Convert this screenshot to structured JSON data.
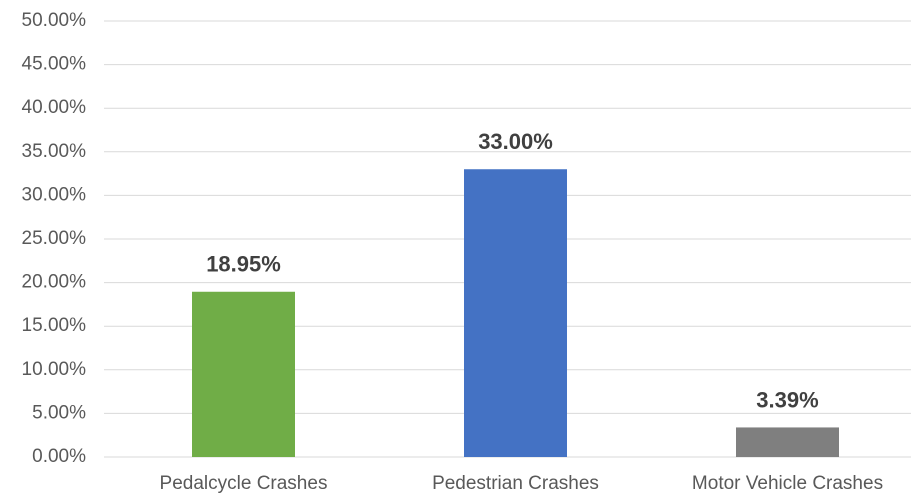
{
  "chart_data": {
    "type": "bar",
    "categories": [
      "Pedalcycle Crashes",
      "Pedestrian Crashes",
      "Motor Vehicle Crashes"
    ],
    "values": [
      18.95,
      33.0,
      3.39
    ],
    "value_labels": [
      "18.95%",
      "33.00%",
      "3.39%"
    ],
    "colors": [
      "#70ad47",
      "#4472c4",
      "#7f7f7f"
    ],
    "ylim": [
      0,
      50
    ],
    "yticks": [
      {
        "value": 0,
        "label": "0.00%"
      },
      {
        "value": 5,
        "label": "5.00%"
      },
      {
        "value": 10,
        "label": "10.00%"
      },
      {
        "value": 15,
        "label": "15.00%"
      },
      {
        "value": 20,
        "label": "20.00%"
      },
      {
        "value": 25,
        "label": "25.00%"
      },
      {
        "value": 30,
        "label": "30.00%"
      },
      {
        "value": 35,
        "label": "35.00%"
      },
      {
        "value": 40,
        "label": "40.00%"
      },
      {
        "value": 45,
        "label": "45.00%"
      },
      {
        "value": 50,
        "label": "50.00%"
      }
    ],
    "grid": true
  }
}
